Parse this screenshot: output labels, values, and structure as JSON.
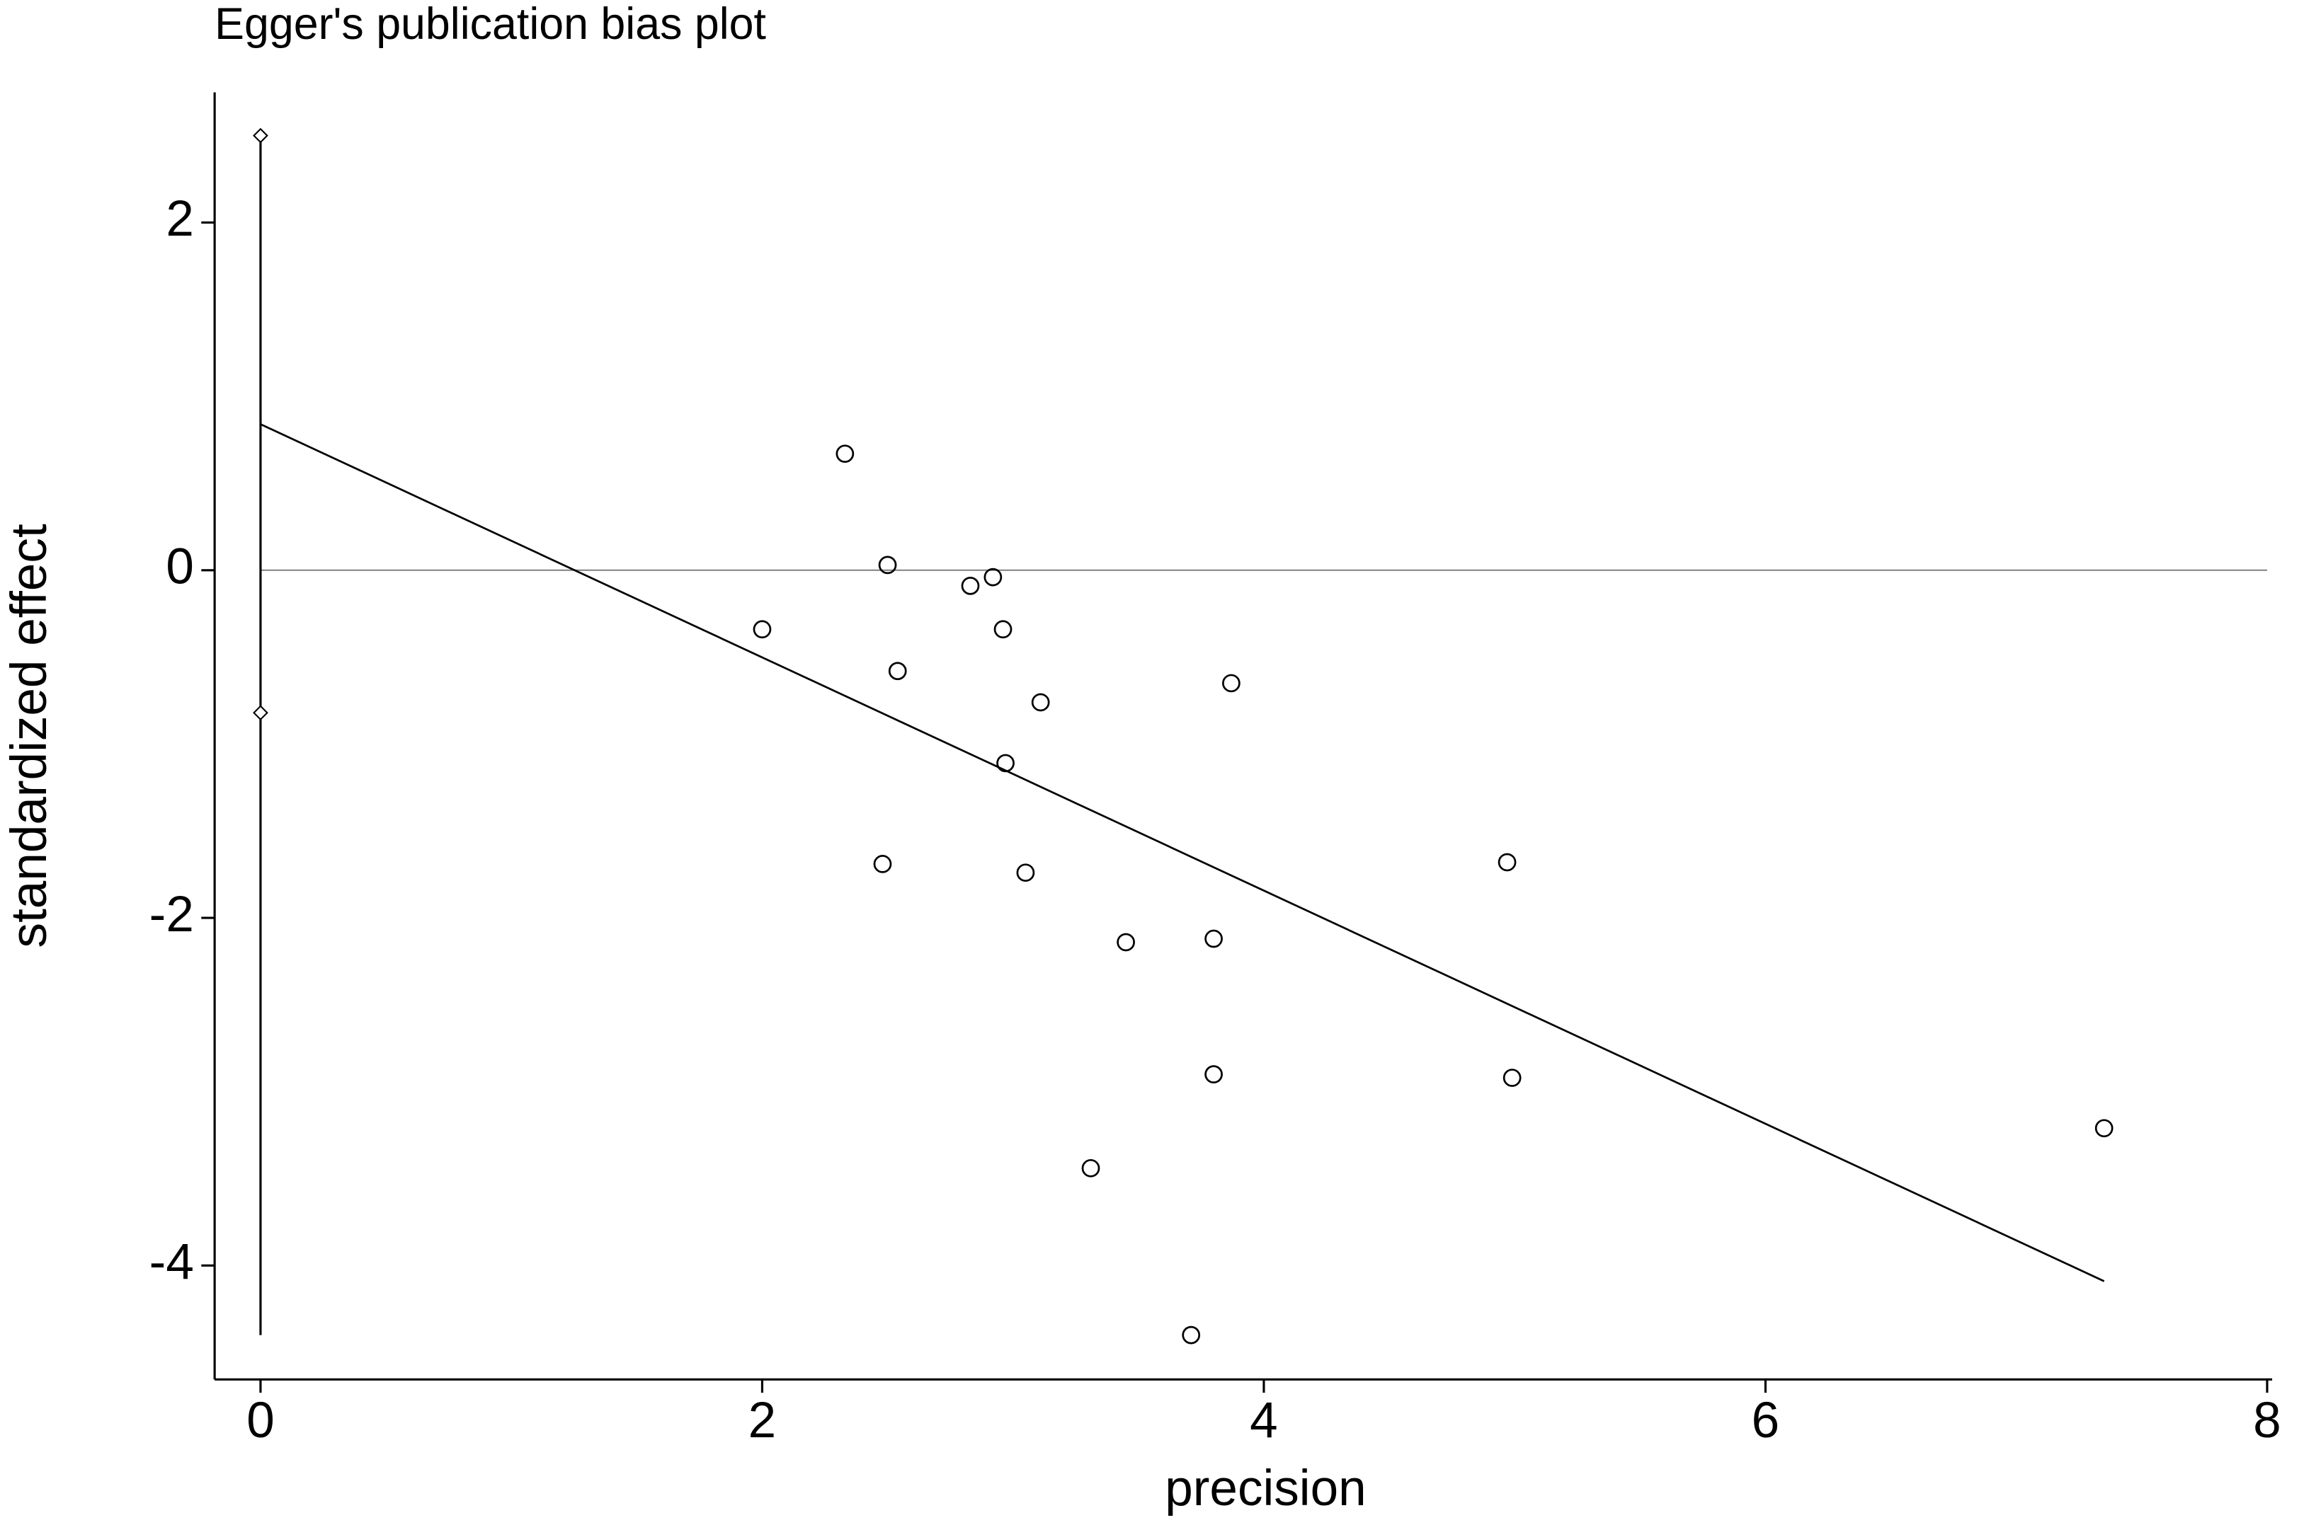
{
  "chart_data": {
    "type": "scatter",
    "title": "Egger's publication bias plot",
    "xlabel": "precision",
    "ylabel": "standardized effect",
    "x": [
      2.33,
      2.5,
      2.83,
      2.92,
      2.0,
      2.96,
      2.54,
      3.11,
      3.87,
      2.97,
      2.48,
      3.05,
      4.97,
      3.45,
      3.8,
      3.8,
      4.99,
      3.31,
      7.35,
      3.71
    ],
    "y": [
      0.67,
      0.03,
      -0.09,
      -0.04,
      -0.34,
      -0.34,
      -0.58,
      -0.76,
      -0.65,
      -1.11,
      -1.69,
      -1.74,
      -1.68,
      -2.14,
      -2.12,
      -2.9,
      -2.92,
      -3.44,
      -3.21,
      -4.4
    ],
    "fit_x": [
      0,
      7.35
    ],
    "fit_y": [
      0.84,
      -4.09
    ],
    "ci_x": 0,
    "ci_line": [
      -4.4,
      2.5
    ],
    "ci_markers": [
      2.5,
      -0.82
    ],
    "reference_line": 0,
    "xlim": [
      -0.183,
      8.02
    ],
    "ylim": [
      -4.655,
      2.749
    ],
    "xticks": [
      0,
      2,
      4,
      6,
      8
    ],
    "yticks": [
      -4,
      -2,
      0,
      2
    ],
    "color": "#000000",
    "reference_color": "#808080"
  }
}
